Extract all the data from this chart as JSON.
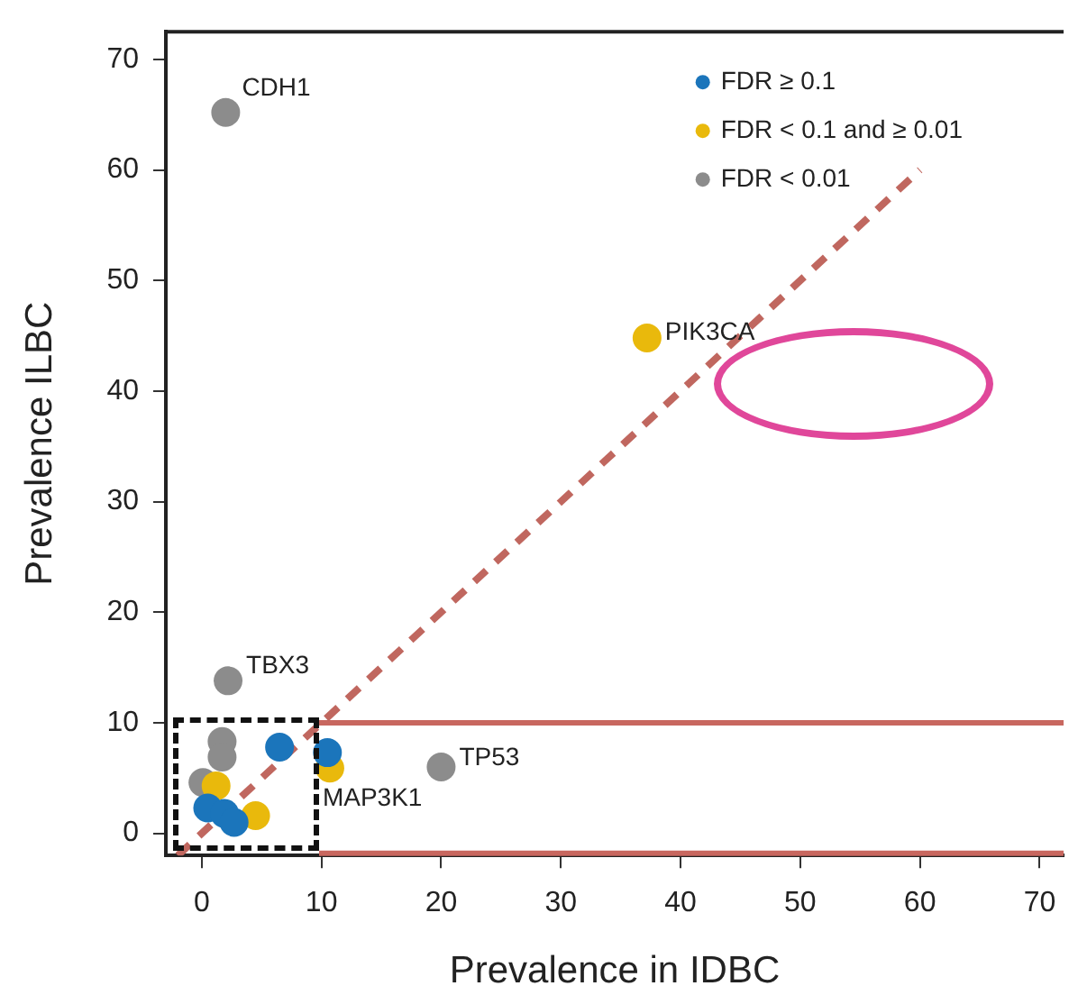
{
  "chart_data": {
    "type": "scatter",
    "xlabel": "Prevalence in IDBC",
    "ylabel": "Prevalence ILBC",
    "xlim": [
      -3,
      72
    ],
    "ylim": [
      -2,
      72.5
    ],
    "xticks": [
      0,
      10,
      20,
      30,
      40,
      50,
      60,
      70
    ],
    "yticks": [
      0,
      10,
      20,
      30,
      40,
      50,
      60,
      70
    ],
    "grid": false,
    "legend": "top right",
    "marker": "circle",
    "series": [
      {
        "name": "FDR ≥ 0.1",
        "color": "#1b75bb",
        "x": [
          0.5,
          1.9,
          2.7,
          6.5,
          10.5
        ],
        "values": [
          2.3,
          1.8,
          1.0,
          7.8,
          7.3
        ]
      },
      {
        "name": "FDR < 0.1 and ≥ 0.01",
        "color": "#e9b90c",
        "x": [
          1.2,
          4.5,
          10.7,
          37.2
        ],
        "values": [
          4.3,
          1.6,
          5.9,
          44.8
        ]
      },
      {
        "name": "FDR < 0.01",
        "color": "#8c8c8c",
        "x": [
          2.0,
          1.7,
          1.7,
          0.1,
          2.2,
          20.0
        ],
        "values": [
          65.2,
          8.3,
          6.9,
          4.6,
          13.8,
          6.0
        ]
      },
      {
        "type": "line",
        "color": "#c0675f",
        "line_style": "dashed",
        "marker": "none",
        "x": [
          -2,
          60
        ],
        "values": [
          -2,
          60
        ]
      }
    ],
    "ref_lines": [
      {
        "axis": "y",
        "value": 10,
        "color": "#c8675f"
      },
      {
        "axis": "y",
        "value": -1.8,
        "color": "#c8675f"
      }
    ],
    "annotations": [
      {
        "text": "CDH1",
        "x": 2.0,
        "y": 65.2
      },
      {
        "text": "PIK3CA",
        "x": 37.2,
        "y": 44.8
      },
      {
        "text": "TBX3",
        "x": 2.2,
        "y": 13.8
      },
      {
        "text": "TP53",
        "x": 20.0,
        "y": 6.0
      },
      {
        "text": "MAP3K1",
        "x": 10.7,
        "y": 5.9
      }
    ]
  }
}
